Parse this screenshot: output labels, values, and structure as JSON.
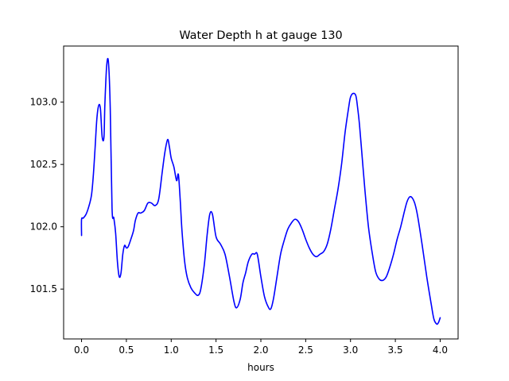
{
  "chart_data": {
    "type": "line",
    "title": "Water Depth h at gauge 130",
    "xlabel": "hours",
    "ylabel": "",
    "xlim": [
      -0.2,
      4.2
    ],
    "ylim": [
      101.1,
      103.45
    ],
    "xticks": [
      0.0,
      0.5,
      1.0,
      1.5,
      2.0,
      2.5,
      3.0,
      3.5,
      4.0
    ],
    "xtick_labels": [
      "0.0",
      "0.5",
      "1.0",
      "1.5",
      "2.0",
      "2.5",
      "3.0",
      "3.5",
      "4.0"
    ],
    "yticks": [
      101.5,
      102.0,
      102.5,
      103.0
    ],
    "ytick_labels": [
      "101.5",
      "102.0",
      "102.5",
      "103.0"
    ],
    "grid": false,
    "series": [
      {
        "color": "#0000ff",
        "x": [
          0.0,
          0.0,
          0.02,
          0.05,
          0.08,
          0.11,
          0.13,
          0.15,
          0.17,
          0.19,
          0.21,
          0.23,
          0.25,
          0.26,
          0.28,
          0.3,
          0.32,
          0.34,
          0.36,
          0.38,
          0.4,
          0.42,
          0.44,
          0.46,
          0.48,
          0.5,
          0.52,
          0.55,
          0.58,
          0.6,
          0.63,
          0.66,
          0.7,
          0.74,
          0.78,
          0.82,
          0.86,
          0.9,
          0.93,
          0.96,
          0.98,
          1.0,
          1.03,
          1.06,
          1.08,
          1.1,
          1.12,
          1.15,
          1.18,
          1.22,
          1.26,
          1.3,
          1.33,
          1.37,
          1.4,
          1.43,
          1.46,
          1.5,
          1.55,
          1.6,
          1.65,
          1.7,
          1.73,
          1.77,
          1.8,
          1.83,
          1.86,
          1.9,
          1.93,
          1.96,
          2.0,
          2.04,
          2.08,
          2.11,
          2.14,
          2.18,
          2.22,
          2.26,
          2.3,
          2.34,
          2.38,
          2.42,
          2.46,
          2.5,
          2.54,
          2.58,
          2.62,
          2.66,
          2.7,
          2.74,
          2.78,
          2.82,
          2.86,
          2.9,
          2.94,
          2.98,
          3.0,
          3.03,
          3.06,
          3.08,
          3.1,
          3.13,
          3.16,
          3.2,
          3.24,
          3.28,
          3.32,
          3.36,
          3.4,
          3.44,
          3.48,
          3.52,
          3.56,
          3.6,
          3.63,
          3.66,
          3.69,
          3.72,
          3.75,
          3.8,
          3.85,
          3.9,
          3.93,
          3.96,
          3.98,
          4.0
        ],
        "values": [
          101.93,
          102.06,
          102.07,
          102.1,
          102.16,
          102.25,
          102.4,
          102.62,
          102.86,
          102.97,
          102.95,
          102.72,
          102.72,
          102.98,
          103.29,
          103.32,
          102.95,
          102.15,
          102.07,
          101.95,
          101.72,
          101.6,
          101.63,
          101.78,
          101.85,
          101.83,
          101.84,
          101.9,
          101.97,
          102.05,
          102.11,
          102.11,
          102.13,
          102.19,
          102.19,
          102.17,
          102.22,
          102.44,
          102.6,
          102.7,
          102.64,
          102.55,
          102.48,
          102.37,
          102.42,
          102.22,
          101.97,
          101.72,
          101.59,
          101.51,
          101.47,
          101.45,
          101.5,
          101.7,
          101.93,
          102.1,
          102.1,
          101.92,
          101.86,
          101.78,
          101.6,
          101.4,
          101.35,
          101.42,
          101.55,
          101.63,
          101.72,
          101.78,
          101.78,
          101.78,
          101.6,
          101.44,
          101.36,
          101.34,
          101.42,
          101.6,
          101.78,
          101.89,
          101.98,
          102.03,
          102.06,
          102.04,
          101.98,
          101.9,
          101.83,
          101.78,
          101.76,
          101.78,
          101.8,
          101.86,
          101.98,
          102.14,
          102.3,
          102.5,
          102.76,
          102.96,
          103.04,
          103.07,
          103.05,
          102.95,
          102.82,
          102.56,
          102.3,
          102.0,
          101.8,
          101.64,
          101.58,
          101.57,
          101.6,
          101.68,
          101.78,
          101.9,
          102.0,
          102.12,
          102.2,
          102.24,
          102.23,
          102.18,
          102.08,
          101.85,
          101.6,
          101.38,
          101.26,
          101.22,
          101.23,
          101.27
        ]
      }
    ]
  }
}
